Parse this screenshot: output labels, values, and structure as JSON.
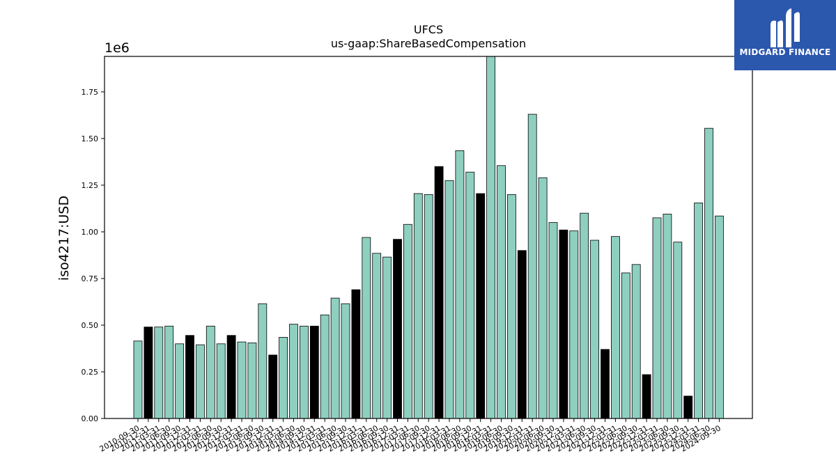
{
  "brand": {
    "name": "MIDGARD FINANCE",
    "bg_color": "#2b57ad",
    "icon": "midgard-logo-icon"
  },
  "chart_data": {
    "type": "bar",
    "title": "UFCS",
    "subtitle": "us-gaap:ShareBasedCompensation",
    "ylabel": "iso4217:USD",
    "xlabel": "",
    "y_multiplier_label": "1e6",
    "ylim": [
      0,
      1.94
    ],
    "y_unit_multiplier": 1000000,
    "yticks": [
      "0.00",
      "0.25",
      "0.50",
      "0.75",
      "1.00",
      "1.25",
      "1.50",
      "1.75"
    ],
    "grid": false,
    "colors": {
      "default": "#8ecfc0",
      "highlight": "#000000",
      "edge": "#000000"
    },
    "categories": [
      "2010-09-30",
      "2010-12-31",
      "2011-03-31",
      "2011-06-30",
      "2011-09-30",
      "2011-12-31",
      "2012-03-31",
      "2012-06-30",
      "2012-09-30",
      "2012-12-31",
      "2013-03-31",
      "2013-06-30",
      "2013-09-30",
      "2013-12-31",
      "2014-03-31",
      "2014-06-30",
      "2014-09-30",
      "2014-12-31",
      "2015-03-31",
      "2015-06-30",
      "2015-09-30",
      "2015-12-31",
      "2016-03-31",
      "2016-06-30",
      "2016-09-30",
      "2016-12-31",
      "2017-03-31",
      "2017-06-30",
      "2017-09-30",
      "2017-12-31",
      "2018-03-31",
      "2018-06-30",
      "2018-09-30",
      "2018-12-31",
      "2019-03-31",
      "2019-06-30",
      "2019-09-30",
      "2019-12-31",
      "2020-03-31",
      "2020-06-30",
      "2020-09-30",
      "2020-12-31",
      "2021-03-31",
      "2021-06-30",
      "2021-09-30",
      "2021-12-31",
      "2022-03-31",
      "2022-06-30",
      "2022-09-30",
      "2022-12-31",
      "2023-03-31",
      "2023-06-30",
      "2023-09-30",
      "2023-12-31",
      "2024-03-31",
      "2024-06-30",
      "2024-09-30"
    ],
    "values": [
      0.415,
      0.49,
      0.49,
      0.495,
      0.4,
      0.445,
      0.395,
      0.495,
      0.4,
      0.445,
      0.41,
      0.405,
      0.615,
      0.34,
      0.435,
      0.505,
      0.495,
      0.495,
      0.555,
      0.645,
      0.615,
      0.69,
      0.97,
      0.885,
      0.865,
      0.96,
      1.04,
      1.205,
      1.2,
      1.35,
      1.275,
      1.435,
      1.32,
      1.205,
      1.94,
      1.355,
      1.2,
      0.9,
      1.63,
      1.29,
      1.05,
      1.01,
      1.005,
      1.1,
      0.955,
      0.37,
      0.975,
      0.78,
      0.825,
      0.235,
      1.075,
      1.095,
      0.945,
      0.12,
      1.155,
      1.555,
      1.085
    ],
    "highlight": [
      false,
      true,
      false,
      false,
      false,
      true,
      false,
      false,
      false,
      true,
      false,
      false,
      false,
      true,
      false,
      false,
      false,
      true,
      false,
      false,
      false,
      true,
      false,
      false,
      false,
      true,
      false,
      false,
      false,
      true,
      false,
      false,
      false,
      true,
      false,
      false,
      false,
      true,
      false,
      false,
      false,
      true,
      false,
      false,
      false,
      true,
      false,
      false,
      false,
      true,
      false,
      false,
      false,
      true,
      false,
      false,
      false
    ]
  }
}
